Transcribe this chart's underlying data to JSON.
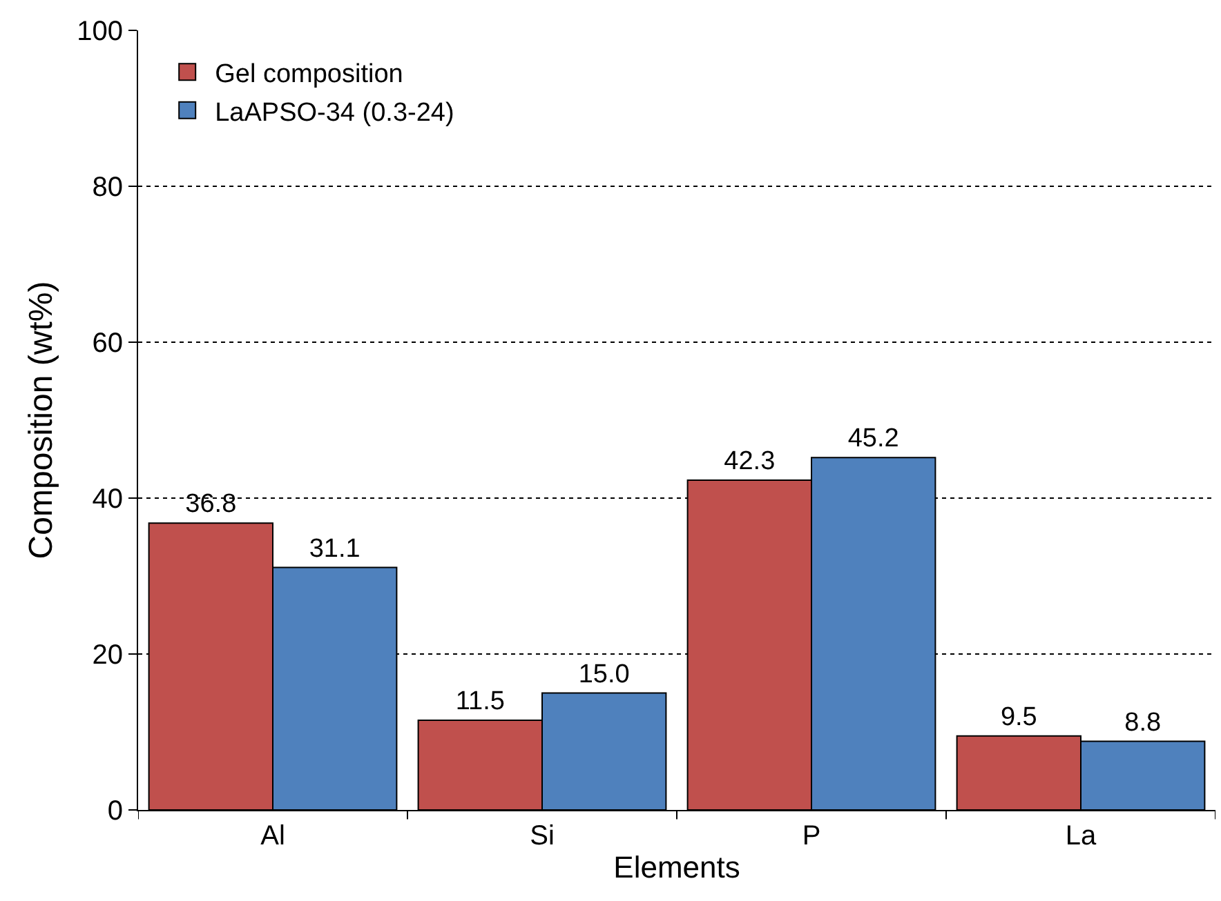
{
  "chart_data": {
    "type": "bar",
    "xlabel": "Elements",
    "ylabel": "Composition (wt%)",
    "categories": [
      "Al",
      "Si",
      "P",
      "La"
    ],
    "series": [
      {
        "name": "Gel composition",
        "color": "#c0504d",
        "values": [
          36.8,
          11.5,
          42.3,
          9.5
        ],
        "value_labels": [
          "36.8",
          "11.5",
          "42.3",
          "9.5"
        ]
      },
      {
        "name": "LaAPSO-34 (0.3-24)",
        "color": "#4f81bd",
        "values": [
          31.1,
          15.0,
          45.2,
          8.8
        ],
        "value_labels": [
          "31.1",
          "15.0",
          "45.2",
          "8.8"
        ]
      }
    ],
    "ylim": [
      0,
      100
    ],
    "yticks": [
      0,
      20,
      40,
      60,
      80,
      100
    ],
    "grid": "y",
    "legend": "top left"
  }
}
